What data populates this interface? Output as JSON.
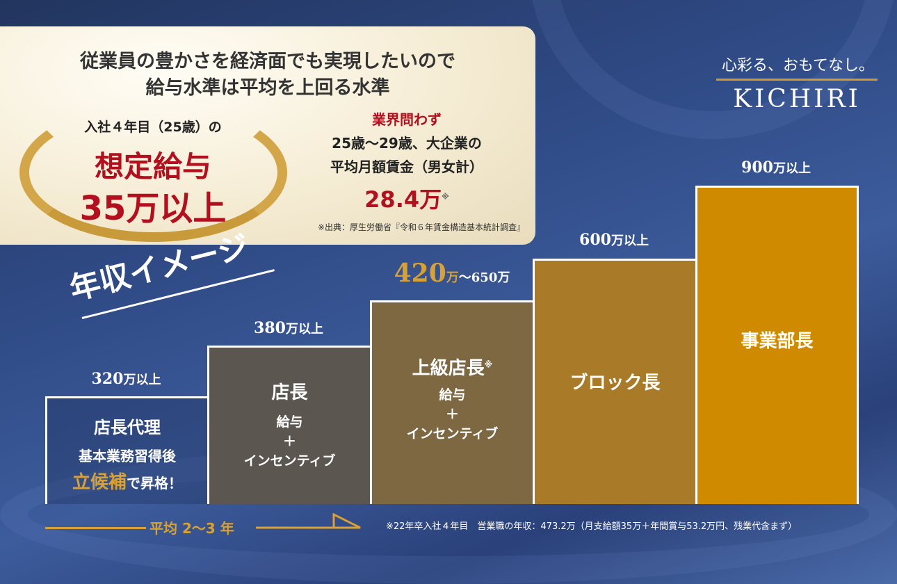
{
  "header": {
    "line1": "従業員の豊かさを経済面でも実現したいので",
    "line2": "給与水準は平均を上回る水準"
  },
  "badge": {
    "intro": "入社４年目（25歳）の",
    "title": "想定給与",
    "amount": "35万以上"
  },
  "comparison": {
    "tag": "業界問わず",
    "line1": "25歳〜29歳、大企業の",
    "line2": "平均月額賃金（男女計）",
    "amount": "28.4万",
    "mark": "※",
    "source": "※出典：厚生労働省『令和６年賃金構造基本統計調査』"
  },
  "logo": {
    "tagline": "心彩る、おもてなし。",
    "brand": "KICHIRI"
  },
  "section_title": "年収イメージ",
  "colors": {
    "red": "#b30f1e",
    "gold": "#d9a032",
    "bar1": "transparent",
    "bar2": "#5b5750",
    "bar3": "#7d6841",
    "bar4": "#a97b28",
    "bar5": "#d08a00"
  },
  "levels": [
    {
      "salary_num": "320",
      "salary_unit": "万以上",
      "title": "店長代理",
      "line1": "基本業務習得後",
      "highlight": "立候補",
      "line2": "で昇格！"
    },
    {
      "salary_num": "380",
      "salary_unit": "万以上",
      "title": "店長",
      "pay1": "給与",
      "plus": "＋",
      "pay2": "インセンティブ"
    },
    {
      "salary_num": "420",
      "salary_unit": "万",
      "salary_range": "〜650万",
      "title": "上級店長",
      "mark": "※",
      "pay1": "給与",
      "plus": "＋",
      "pay2": "インセンティブ"
    },
    {
      "salary_num": "600",
      "salary_unit": "万以上",
      "title": "ブロック長"
    },
    {
      "salary_num": "900",
      "salary_unit": "万以上",
      "title": "事業部長"
    }
  ],
  "timeline": {
    "label": "平均 2〜3 年"
  },
  "footnote": "※22年卒入社４年目　営業職の年収：473.2万（月支給額35万＋年間賞与53.2万円、残業代含まず）"
}
